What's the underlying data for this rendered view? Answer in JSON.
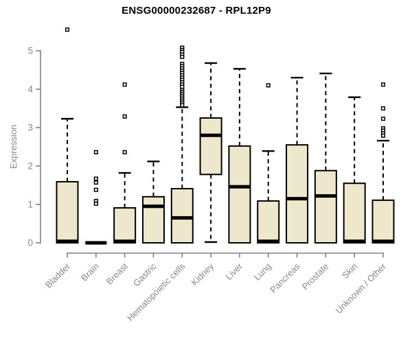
{
  "chart_data": {
    "type": "boxplot",
    "title": "ENSG00000232687 - RPL12P9",
    "ylabel": "Expression",
    "ylim": [
      0,
      5
    ],
    "yticks": [
      0,
      1,
      2,
      3,
      4,
      5
    ],
    "grid": false,
    "legend": "none",
    "colors": {
      "box_fill": "#EDE7CB",
      "box_stroke": "#000000",
      "median": "#000000",
      "whisker": "#000000",
      "axis": "#808080",
      "tick_label": "#878787",
      "title": "#000000",
      "background": "#ffffff"
    },
    "categories": [
      "Bladder",
      "Brain",
      "Breast",
      "Gastric",
      "Hematopoietic cells",
      "Kidney",
      "Liver",
      "Lung",
      "Pancreas",
      "Prostate",
      "Skin",
      "Unknown / Other"
    ],
    "boxes": [
      {
        "category": "Bladder",
        "whisker_low": 0,
        "q1": 0,
        "median": 0.04,
        "q3": 1.59,
        "whisker_high": 3.23,
        "outliers": [
          5.55
        ]
      },
      {
        "category": "Brain",
        "whisker_low": 0,
        "q1": 0,
        "median": 0,
        "q3": 0,
        "whisker_high": 0,
        "outliers": [
          2.36,
          1.67,
          1.57,
          1.38,
          1.09,
          1.02
        ]
      },
      {
        "category": "Breast",
        "whisker_low": 0,
        "q1": 0,
        "median": 0.04,
        "q3": 0.91,
        "whisker_high": 1.82,
        "outliers": [
          4.12,
          3.29,
          2.36
        ]
      },
      {
        "category": "Gastric",
        "whisker_low": 0,
        "q1": 0,
        "median": 0.95,
        "q3": 1.2,
        "whisker_high": 2.12,
        "outliers": []
      },
      {
        "category": "Hematopoietic cells",
        "whisker_low": 0,
        "q1": 0,
        "median": 0.65,
        "q3": 1.41,
        "whisker_high": 3.53,
        "outliers": [
          5.08,
          5.02,
          4.97,
          4.9,
          4.84,
          4.66,
          4.6,
          4.54,
          4.48,
          4.42,
          4.36,
          4.3,
          4.24,
          4.18,
          4.12,
          4.06,
          3.98,
          3.93,
          3.88,
          3.83,
          3.78,
          3.73,
          3.68,
          3.63,
          3.58
        ]
      },
      {
        "category": "Kidney",
        "whisker_low": 0.02,
        "q1": 1.78,
        "median": 2.8,
        "q3": 3.25,
        "whisker_high": 4.68,
        "outliers": []
      },
      {
        "category": "Liver",
        "whisker_low": 0,
        "q1": 0,
        "median": 1.46,
        "q3": 2.52,
        "whisker_high": 4.53,
        "outliers": []
      },
      {
        "category": "Lung",
        "whisker_low": 0,
        "q1": 0,
        "median": 0.04,
        "q3": 1.09,
        "whisker_high": 2.39,
        "outliers": [
          4.1
        ]
      },
      {
        "category": "Pancreas",
        "whisker_low": 0,
        "q1": 0,
        "median": 1.15,
        "q3": 2.55,
        "whisker_high": 4.3,
        "outliers": []
      },
      {
        "category": "Prostate",
        "whisker_low": 0,
        "q1": 0,
        "median": 1.22,
        "q3": 1.88,
        "whisker_high": 4.41,
        "outliers": []
      },
      {
        "category": "Skin",
        "whisker_low": 0,
        "q1": 0,
        "median": 0.04,
        "q3": 1.55,
        "whisker_high": 3.79,
        "outliers": []
      },
      {
        "category": "Unknown / Other",
        "whisker_low": 0,
        "q1": 0,
        "median": 0.04,
        "q3": 1.11,
        "whisker_high": 2.66,
        "outliers": [
          4.12,
          3.5,
          3.23,
          2.98,
          2.92,
          2.85,
          2.79
        ]
      }
    ]
  }
}
